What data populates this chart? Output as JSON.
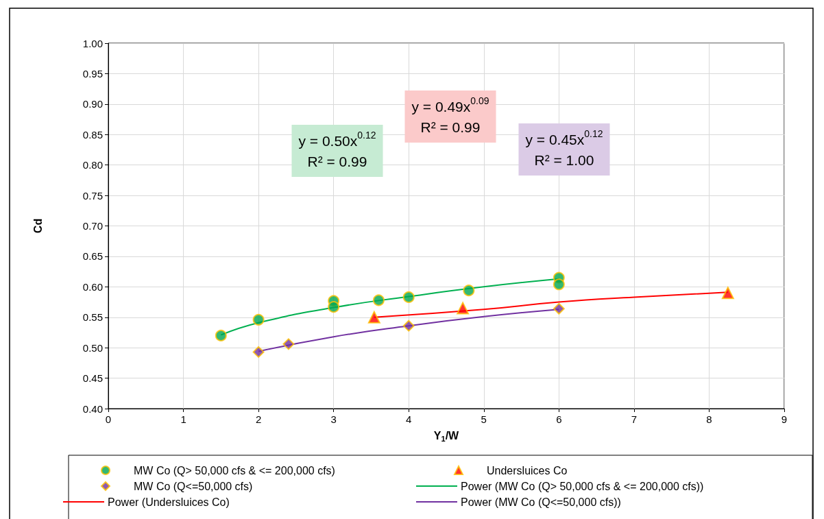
{
  "chart_data": {
    "type": "scatter",
    "xlabel": "Y$_{1}$/W",
    "ylabel": "Cd",
    "xlim": [
      0,
      9
    ],
    "xticks": [
      0,
      1,
      2,
      3,
      4,
      5,
      6,
      7,
      8,
      9
    ],
    "ylim": [
      0.4,
      1.0
    ],
    "yticks": [
      {
        "value": 0.4,
        "label": "0.40"
      },
      {
        "value": 0.45,
        "label": "0.45"
      },
      {
        "value": 0.5,
        "label": "0.50"
      },
      {
        "value": 0.55,
        "label": "0.55"
      },
      {
        "value": 0.6,
        "label": "0.60"
      },
      {
        "value": 0.65,
        "label": "0.65"
      },
      {
        "value": 0.7,
        "label": "0.70"
      },
      {
        "value": 0.75,
        "label": "0.75"
      },
      {
        "value": 0.8,
        "label": "0.80"
      },
      {
        "value": 0.85,
        "label": "0.85"
      },
      {
        "value": 0.9,
        "label": "0.90"
      },
      {
        "value": 0.95,
        "label": "0.95"
      },
      {
        "value": 1.0,
        "label": "1.00"
      }
    ],
    "grid": true,
    "legend": "bottom",
    "annotations": [
      "y = 0.50x$^{0.12}$\nR² = 0.99",
      "y = 0.49x$^{0.09}$\nR² = 0.99",
      "y = 0.45x$^{0.12}$\nR² = 1.00"
    ],
    "series": [
      {
        "name": "MW Co (Q> 50,000 cfs & <= 200,000 cfs)",
        "marker": "circle",
        "color": "#00a651",
        "x": [
          1.5,
          2,
          3,
          3,
          3.6,
          4,
          4.8,
          6,
          6
        ],
        "values": [
          0.52,
          0.546,
          0.577,
          0.567,
          0.578,
          0.583,
          0.594,
          0.615,
          0.604
        ]
      },
      {
        "name": "Undersluices Co",
        "marker": "triangle",
        "color": "#ff0000",
        "x": [
          3.54,
          4.72,
          8.25
        ],
        "values": [
          0.55,
          0.565,
          0.59
        ]
      },
      {
        "name": "MW Co (Q<=50,000 cfs)",
        "marker": "diamond",
        "color": "#7030a0",
        "x": [
          2,
          2.4,
          4,
          6
        ],
        "values": [
          0.493,
          0.506,
          0.536,
          0.564
        ]
      },
      {
        "name": "Power (MW Co (Q> 50,000 cfs & <= 200,000 cfs))",
        "type": "line",
        "marker": "none",
        "color": "#00b050",
        "x": [
          1.5,
          2,
          3,
          4,
          5,
          6
        ],
        "values": [
          0.521,
          0.541,
          0.566,
          0.584,
          0.6,
          0.613
        ]
      },
      {
        "name": "Power (Undersluices Co)",
        "type": "line",
        "marker": "none",
        "color": "#ff0000",
        "x": [
          3.54,
          5,
          6,
          7,
          8.25
        ],
        "values": [
          0.55,
          0.563,
          0.575,
          0.583,
          0.591
        ]
      },
      {
        "name": "Power (MW Co (Q<=50,000 cfs))",
        "type": "line",
        "marker": "none",
        "color": "#7030a0",
        "x": [
          2,
          3,
          4,
          5,
          6
        ],
        "values": [
          0.494,
          0.518,
          0.536,
          0.551,
          0.563
        ]
      }
    ]
  }
}
